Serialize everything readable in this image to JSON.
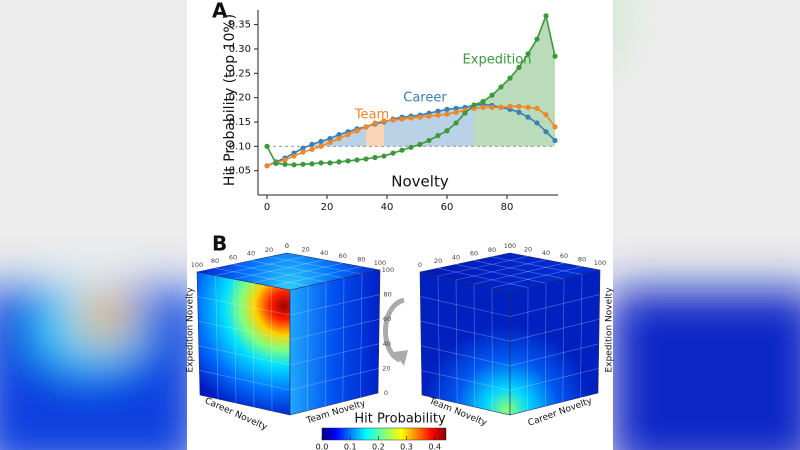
{
  "chart_data": {
    "type": "line",
    "panel_label": "A",
    "xlabel": "Novelty",
    "ylabel": "Hit Probability (top 10%)",
    "x": [
      0,
      3,
      6,
      9,
      12,
      15,
      18,
      21,
      24,
      27,
      30,
      33,
      36,
      39,
      42,
      45,
      48,
      51,
      54,
      57,
      60,
      63,
      66,
      69,
      72,
      75,
      78,
      81,
      84,
      87,
      90,
      93,
      96
    ],
    "series": [
      {
        "name": "Career",
        "color": "#3a7fb5",
        "values": [
          0.06,
          0.068,
          0.076,
          0.086,
          0.096,
          0.104,
          0.11,
          0.116,
          0.124,
          0.13,
          0.136,
          0.14,
          0.146,
          0.15,
          0.156,
          0.16,
          0.162,
          0.164,
          0.168,
          0.172,
          0.176,
          0.178,
          0.18,
          0.184,
          0.186,
          0.184,
          0.18,
          0.176,
          0.17,
          0.16,
          0.148,
          0.13,
          0.112
        ]
      },
      {
        "name": "Team",
        "color": "#f0862a",
        "values": [
          0.06,
          0.066,
          0.072,
          0.08,
          0.088,
          0.094,
          0.1,
          0.108,
          0.116,
          0.124,
          0.132,
          0.14,
          0.148,
          0.152,
          0.154,
          0.156,
          0.158,
          0.16,
          0.162,
          0.164,
          0.166,
          0.17,
          0.174,
          0.178,
          0.18,
          0.18,
          0.18,
          0.182,
          0.182,
          0.18,
          0.178,
          0.165,
          0.14
        ]
      },
      {
        "name": "Expedition",
        "color": "#3a9a3a",
        "values": [
          0.1,
          0.065,
          0.063,
          0.062,
          0.063,
          0.064,
          0.066,
          0.066,
          0.068,
          0.07,
          0.072,
          0.074,
          0.077,
          0.08,
          0.086,
          0.092,
          0.098,
          0.104,
          0.112,
          0.122,
          0.132,
          0.148,
          0.168,
          0.185,
          0.192,
          0.205,
          0.222,
          0.24,
          0.262,
          0.29,
          0.32,
          0.368,
          0.285
        ]
      }
    ],
    "xlim": [
      -3,
      97
    ],
    "ylim": [
      0,
      0.38
    ],
    "xticks": [
      0,
      20,
      40,
      60,
      80
    ],
    "yticks": [
      0.05,
      {
        "value": 0.1,
        "label": "0.10"
      },
      0.15,
      {
        "value": 0.2,
        "label": "0.20"
      },
      0.25,
      {
        "value": 0.3,
        "label": "0.30"
      },
      0.35
    ],
    "baseline": 0.1
  },
  "panel_b": {
    "panel_label": "B",
    "cube_ticks": [
      0,
      20,
      40,
      60,
      80,
      100
    ],
    "cube_tick_range": [
      0,
      100
    ],
    "left_cube": {
      "vertical_axis": "Expedition Novelty",
      "left_axis": "Career Novelty",
      "right_axis": "Team Novelty"
    },
    "right_cube": {
      "vertical_axis": "Expedition Novelty",
      "left_axis": "Team Novelty",
      "right_axis": "Career Novelty"
    },
    "colorbar": {
      "label": "Hit Probability",
      "lim": [
        0,
        0.44
      ],
      "ticks": [
        {
          "value": 0,
          "label": "0.0"
        },
        0.1,
        0.2,
        0.3,
        0.4
      ]
    }
  }
}
